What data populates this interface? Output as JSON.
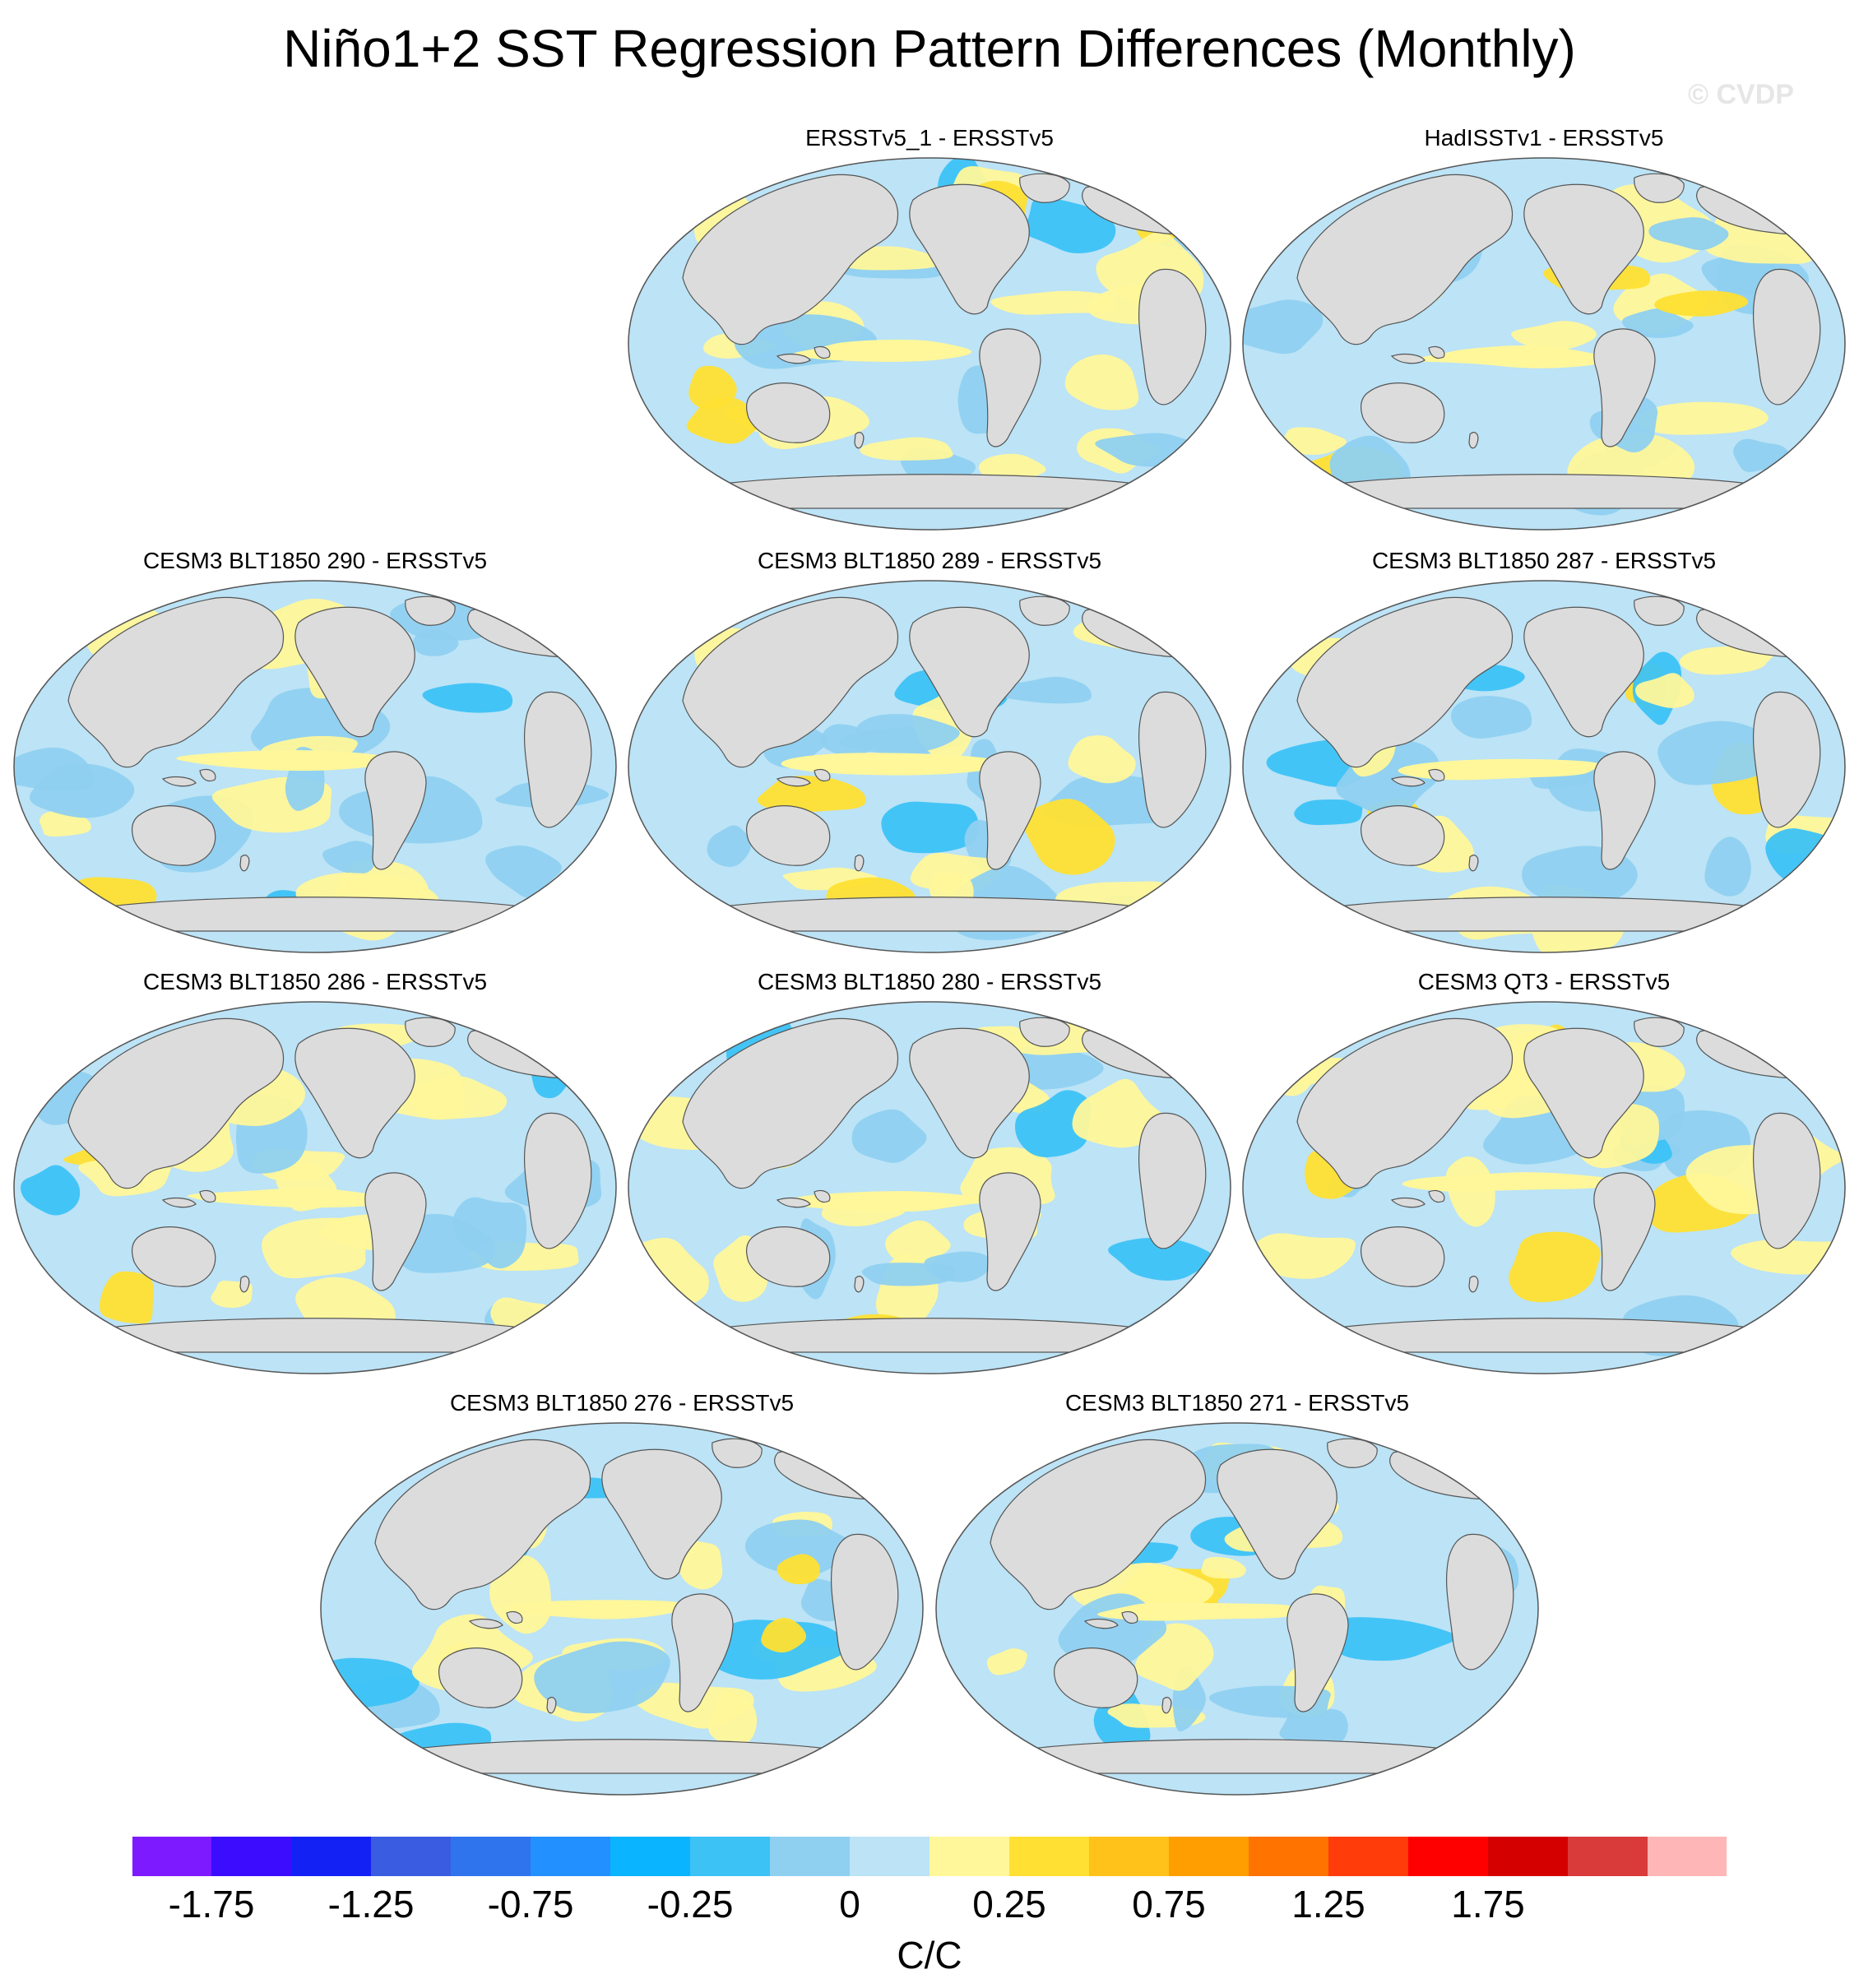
{
  "title": "Niño1+2 SST Regression Pattern Differences (Monthly)",
  "watermark": "© CVDP",
  "panels": [
    {
      "label": "ERSSTv5_1 - ERSSTv5",
      "seed": 11
    },
    {
      "label": "HadISSTv1 - ERSSTv5",
      "seed": 23
    },
    {
      "label": "CESM3 BLT1850 290 - ERSSTv5",
      "seed": 37
    },
    {
      "label": "CESM3 BLT1850 289 - ERSSTv5",
      "seed": 41
    },
    {
      "label": "CESM3 BLT1850 287 - ERSSTv5",
      "seed": 53
    },
    {
      "label": "CESM3 BLT1850 286 - ERSSTv5",
      "seed": 67
    },
    {
      "label": "CESM3 BLT1850 280 - ERSSTv5",
      "seed": 71
    },
    {
      "label": "CESM3 QT3 - ERSSTv5",
      "seed": 83
    },
    {
      "label": "CESM3 BLT1850 276 - ERSSTv5",
      "seed": 97
    },
    {
      "label": "CESM3 BLT1850 271 - ERSSTv5",
      "seed": 101
    }
  ],
  "colorbar": {
    "units": "C/C",
    "labels": [
      "-1.75",
      "-1.25",
      "-0.75",
      "-0.25",
      "0",
      "0.25",
      "0.75",
      "1.25",
      "1.75"
    ],
    "colors": [
      "#7d1aff",
      "#3c0cff",
      "#1421f5",
      "#3a5ce0",
      "#2f74ec",
      "#2290ff",
      "#0bb4ff",
      "#3cc2f5",
      "#8fd0f0",
      "#bce3f6",
      "#fff79a",
      "#ffe033",
      "#ffc21a",
      "#ff9e00",
      "#ff7300",
      "#ff3c0a",
      "#ff0000",
      "#d40000",
      "#d93b3b",
      "#ffb6b6"
    ]
  },
  "map_colors": {
    "land": "#dcdcdc",
    "coast": "#555555",
    "positive": "#fff79a",
    "positive_strong": "#ffe033",
    "negative": "#bce3f6",
    "negative_strong": "#8fd0f0",
    "negative_max": "#3cc2f5"
  }
}
